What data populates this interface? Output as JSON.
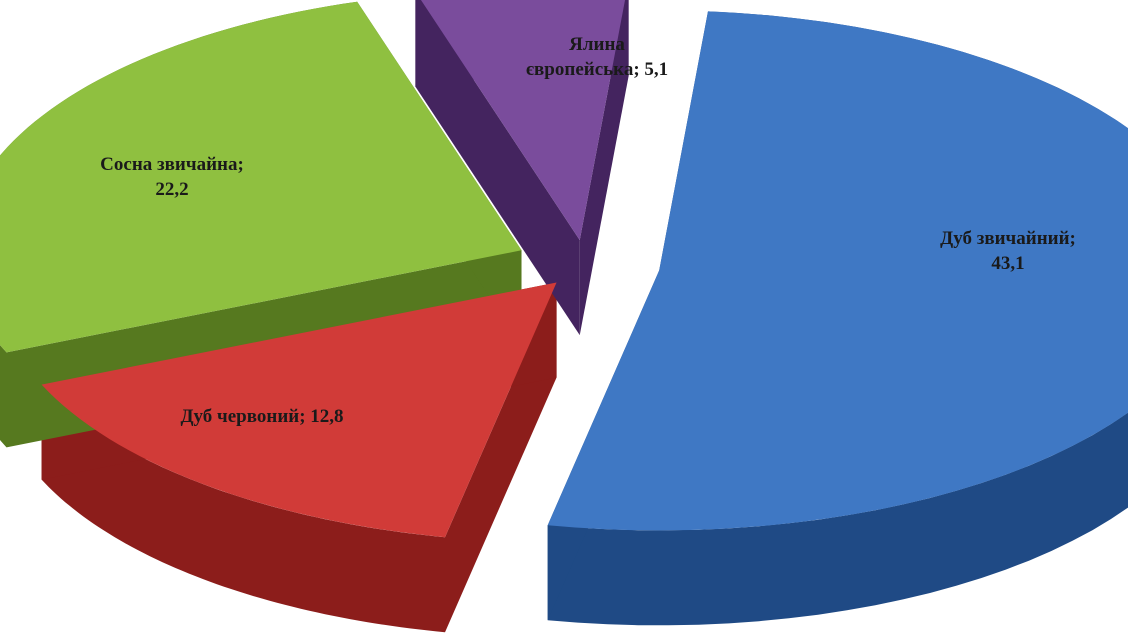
{
  "chart_data": {
    "type": "pie",
    "title": "",
    "slices": [
      {
        "label": "Дуб звичайний",
        "value": 43.1,
        "value_text": "43,1",
        "label_lines": [
          "Дуб звичайний;",
          "43,1"
        ],
        "color": "#3f78c4",
        "side_color": "#1f4a85"
      },
      {
        "label": "Дуб червоний",
        "value": 12.8,
        "value_text": "12,8",
        "label_lines": [
          "Дуб червоний; 12,8"
        ],
        "color": "#d13b38",
        "side_color": "#8c1d1b"
      },
      {
        "label": "Сосна звичайна",
        "value": 22.2,
        "value_text": "22,2",
        "label_lines": [
          "Сосна звичайна;",
          "22,2"
        ],
        "color": "#8fc040",
        "side_color": "#56791f"
      },
      {
        "label": "Ялина європейська",
        "value": 5.1,
        "value_text": "5,1",
        "label_lines": [
          "Ялина",
          "європейська; 5,1"
        ],
        "color": "#7a4c9c",
        "side_color": "#44245f"
      }
    ],
    "legend": "none",
    "style": "3d-exploded"
  }
}
